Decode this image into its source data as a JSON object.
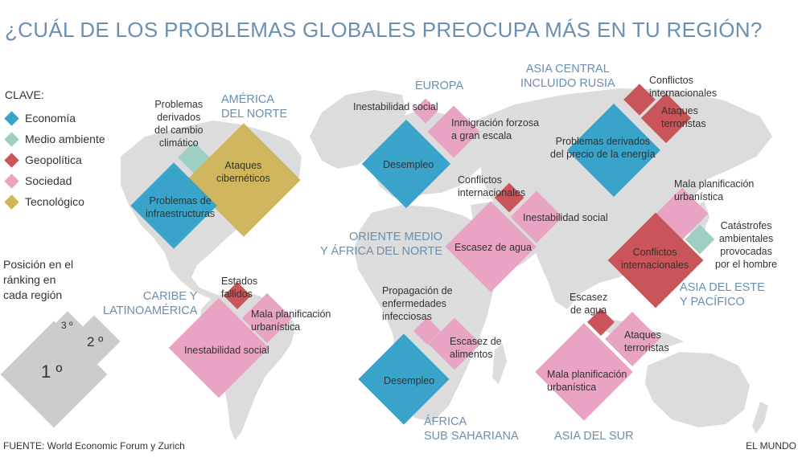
{
  "title": "¿CUÁL DE LOS PROBLEMAS GLOBALES PREOCUPA MÁS EN TU REGIÓN?",
  "colors": {
    "economia": "#3aa3c9",
    "medio_ambiente": "#9fcfc4",
    "geopolitica": "#c9555a",
    "sociedad": "#e9a3c3",
    "tecnologico": "#cfb55c",
    "region_text": "#6b8fb0",
    "land": "#dcdcdc",
    "rank_squares": "#cccccc"
  },
  "legend": {
    "title": "CLAVE:",
    "items": [
      {
        "label": "Economía",
        "color": "#3aa3c9"
      },
      {
        "label": "Medio ambiente",
        "color": "#9fcfc4"
      },
      {
        "label": "Geopolítica",
        "color": "#c9555a"
      },
      {
        "label": "Sociedad",
        "color": "#e9a3c3"
      },
      {
        "label": "Tecnológico",
        "color": "#cfb55c"
      }
    ]
  },
  "ranking_legend": {
    "text": [
      "Posición en el",
      "ránking en",
      "cada región"
    ],
    "first": "1 º",
    "second": "2 º",
    "third": "3 º"
  },
  "regions": {
    "north_america": {
      "name": [
        "AMÉRICA",
        "DEL NORTE"
      ],
      "first": [
        "Problemas de",
        "infraestructuras"
      ],
      "second": [
        "Ataques",
        "cibernéticos"
      ],
      "third": [
        "Problemas",
        "derivados",
        "del cambio",
        "climático"
      ]
    },
    "europe": {
      "name": [
        "EUROPA"
      ],
      "first": [
        "Desempleo"
      ],
      "second": [
        "Inmigración forzosa",
        "a gran escala"
      ],
      "third": [
        "Inestabilidad social"
      ]
    },
    "central_asia": {
      "name": [
        "ASIA CENTRAL",
        "INCLUIDO RUSIA"
      ],
      "first": [
        "Problemas derivados",
        "del precio de la energía"
      ],
      "second": [
        "Ataques",
        "terroristas"
      ],
      "third": [
        "Conflictos",
        "internacionales"
      ]
    },
    "mena": {
      "name": [
        "ORIENTE MEDIO",
        "Y ÁFRICA DEL NORTE"
      ],
      "first": [
        "Escasez de agua"
      ],
      "second": [
        "Inestabilidad social"
      ],
      "third": [
        "Conflictos",
        "internacionales"
      ]
    },
    "east_asia": {
      "name": [
        "ASIA DEL ESTE",
        "Y PACÍFICO"
      ],
      "first": [
        "Conflictos",
        "internacionales"
      ],
      "second": [
        "Mala planificación",
        "urbanística"
      ],
      "third": [
        "Catástrofes",
        "ambientales",
        "provocadas",
        "por  el hombre"
      ]
    },
    "latin_america": {
      "name": [
        "CARIBE Y",
        "LATINOAMÉRICA"
      ],
      "first": [
        "Inestabilidad social"
      ],
      "second": [
        "Mala planificación",
        "urbanística"
      ],
      "third": [
        "Estados",
        "fallidos"
      ]
    },
    "ssa": {
      "name": [
        "ÁFRICA",
        "SUB SAHARIANA"
      ],
      "first": [
        "Desempleo"
      ],
      "second": [
        "Escasez de",
        "alimentos"
      ],
      "third": [
        "Propagación de",
        "enfermedades",
        "infecciosas"
      ]
    },
    "south_asia": {
      "name": [
        "ASIA DEL SUR"
      ],
      "first": [
        "Mala planificación",
        "urbanística"
      ],
      "second": [
        "Ataques",
        "terroristas"
      ],
      "third": [
        "Escasez",
        "de agua"
      ]
    }
  },
  "source": "FUENTE:  World Economic Forum y Zurich",
  "brand": "EL MUNDO"
}
